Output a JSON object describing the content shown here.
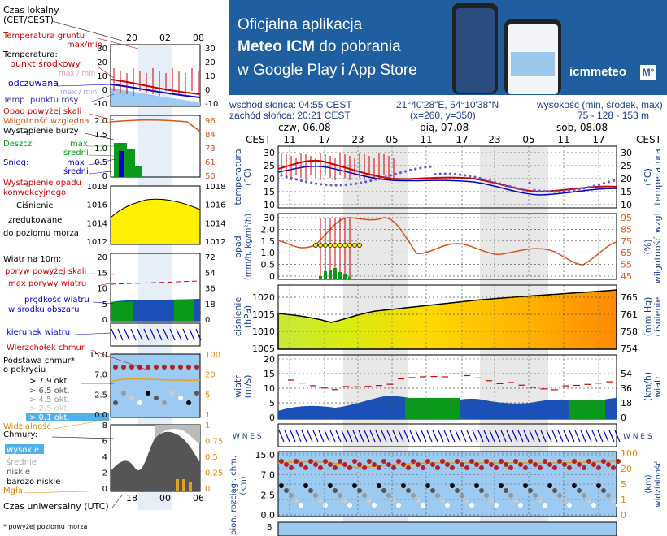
{
  "banner": {
    "line1": "Oficjalna aplikacja",
    "line2_bold": "Meteo ICM",
    "line2_rest": " do pobrania",
    "line3": "w Google Play i App Store",
    "logo": "icmmeteo",
    "logo_badge": "M°"
  },
  "info": {
    "sunrise": "wschód słońca: 04:55 CEST",
    "sunset": "zachód słońca: 20:21 CEST",
    "coords": "21°40'28\"E, 54°10'38\"N",
    "grid": "(x=260, y=350)",
    "elev_title": "wysokość (min, środek, max)",
    "elev_values": "75 - 128 - 153 m"
  },
  "legend": {
    "local_time": "Czas lokalny\n(CET/CEST)",
    "local_ticks": [
      "20",
      "02",
      "08"
    ],
    "utc_ticks": [
      "18",
      "00",
      "06"
    ],
    "utc_label": "Czas uniwersalny (UTC)",
    "footnote": "* powyżej poziomu morza",
    "temp_panel": {
      "ground": "Temperatura gruntu",
      "maxmin": "max/min",
      "temperature": "Temperatura:",
      "mid": "punkt środkowy",
      "maxmin2": "max / min",
      "felt": "odczuwana",
      "maxmin3": "max / min",
      "dew": "Temp. punktu rosy",
      "left_ticks": [
        "30",
        "20",
        "10",
        "0",
        "-10"
      ],
      "right_ticks": [
        "30",
        "20",
        "10",
        "0",
        "-10"
      ]
    },
    "precip_panel": {
      "over": "Opad powyżej skali",
      "humidity": "Wilgotność względna",
      "storm": "Wystąpienie burzy",
      "rain": "Deszcz:",
      "rain_max": "max",
      "rain_mid": "średni",
      "snow": "Śnieg:",
      "snow_max": "max",
      "snow_mid": "średni",
      "occur1": "Wystąpienie opadu",
      "occur2": "konwekcyjnego",
      "left_ticks": [
        "2.0",
        "1.5",
        "1.0",
        "0.5",
        "0"
      ],
      "right_ticks": [
        "96",
        "84",
        "73",
        "61",
        "50"
      ]
    },
    "pressure_panel": {
      "l1": "Ciśnienie",
      "l2": "zredukowane",
      "l3": "do poziomu morza",
      "left_ticks": [
        "1018",
        "1016",
        "1014",
        "1012"
      ],
      "right_ticks": [
        "1018",
        "1016",
        "1014",
        "1012"
      ]
    },
    "wind_panel": {
      "title": "Wiatr na 10m:",
      "gust_over": "poryw powyżej skali",
      "gust_max": "max porywy wiatru",
      "speed1": "prędkość wiatru",
      "speed2": "w środku obszaru",
      "left_ticks": [
        "20",
        "15",
        "10",
        "5",
        "0"
      ],
      "right_ticks": [
        "72",
        "54",
        "36",
        "18",
        "0"
      ]
    },
    "dir_label": "kierunek wiatru",
    "cloud_base_panel": {
      "top": "Wierzchołek chmur",
      "base": "Podstawa chmur*",
      "cover": "o pokryciu",
      "o1": "> 7.9 okt.",
      "o2": "> 6.5 okt.",
      "o3": "> 4.5 okt.",
      "o4": "> 2.5 okt.",
      "o5": "> 0.1 okt.",
      "vis": "Widzialność",
      "left_ticks": [
        "15.0",
        "7.0",
        "2.5",
        "0.0"
      ],
      "right_ticks": [
        "100",
        "20",
        "5",
        "1"
      ]
    },
    "clouds_panel": {
      "title": "Chmury:",
      "high": "wysokie",
      "mid": "średnie",
      "low": "niskie",
      "vlow": "bardzo niskie",
      "fog": "Mgła",
      "left_ticks": [
        "8",
        "6",
        "4",
        "2",
        "0"
      ],
      "right_ticks": [
        "1",
        "0.75",
        "0.5",
        "0.25",
        "0"
      ]
    }
  },
  "main": {
    "cest_left": "CEST",
    "cest_right": "CEST",
    "days": [
      "czw, 06.08",
      "pią, 07.08",
      "sob, 08.08"
    ],
    "hours": [
      "11",
      "17",
      "23",
      "05",
      "11",
      "17",
      "23",
      "05",
      "11",
      "17"
    ],
    "temp": {
      "ylabel": "temperatura",
      "yunit": "(°C)",
      "yunit_r": "(°C)",
      "ylabel_r": "temperatura",
      "ticks": [
        "30",
        "25",
        "20",
        "15",
        "10"
      ],
      "ticks_r": [
        "30",
        "25",
        "20",
        "15",
        "10"
      ]
    },
    "precip": {
      "ylabel": "opad",
      "yunit": "(mm/h, kg/m²/h)",
      "ylabel_r": "wilgotność wzgl.",
      "yunit_r": "(%)",
      "ticks": [
        "30",
        "2.0",
        "1.5",
        "1.0",
        "0.5",
        "0"
      ],
      "ticks_r": [
        "95",
        "85",
        "75",
        "65",
        "55",
        "45"
      ]
    },
    "pressure": {
      "ylabel": "ciśnienie",
      "yunit": "(hPa)",
      "ylabel_r": "ciśnienie",
      "yunit_r": "(mm Hg)",
      "ticks": [
        "1020",
        "1015",
        "1010",
        "1005"
      ],
      "ticks_r": [
        "765",
        "761",
        "758",
        "754"
      ]
    },
    "wind": {
      "ylabel": "wiatr",
      "yunit": "(m/s)",
      "ylabel_r": "wiatr",
      "yunit_r": "(km/h)",
      "ticks": [
        "20",
        "15",
        "10",
        "5",
        "0"
      ],
      "ticks_r": [
        "54",
        "36",
        "18",
        "0"
      ]
    },
    "compass": "W N E S",
    "cloudbase": {
      "ylabel": "pion. rozciągł. chm.",
      "yunit": "(km)",
      "ylabel_r": "widzialność",
      "yunit_r": "(km)",
      "ticks": [
        "15.0",
        "7.0",
        "2.5",
        "0.0"
      ],
      "ticks_r": [
        "100",
        "20",
        "5",
        "1",
        "0"
      ]
    },
    "bottom_tick": "8"
  },
  "colors": {
    "banner_bg": "#1f5fa0",
    "red": "#cc0000",
    "blue": "#0000cc",
    "orange": "#d9541a",
    "green": "#0a9a1a",
    "yellow": "#ffef00",
    "sky": "#9ccaf0"
  }
}
